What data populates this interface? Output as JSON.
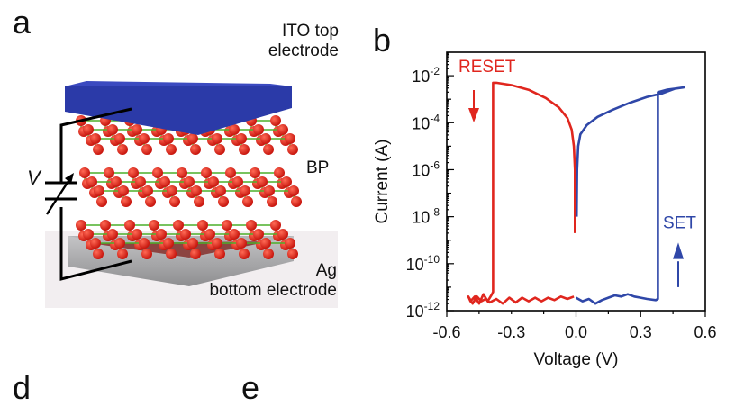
{
  "panels": {
    "a": {
      "letter": "a",
      "labels": {
        "top_electrode": [
          "ITO top",
          "electrode"
        ],
        "middle": "BP",
        "bottom_electrode": [
          "Ag",
          "bottom electrode"
        ],
        "voltage_source": "V"
      },
      "colors": {
        "top_electrode": "#2b3aa8",
        "atoms": "#e0261e",
        "bonds": "#4caf2a",
        "bottom_electrode": "#a9a9ab"
      }
    },
    "b": {
      "letter": "b"
    },
    "d": {
      "letter": "d"
    },
    "e": {
      "letter": "e"
    }
  },
  "chart_data": {
    "type": "line",
    "title": "",
    "xlabel": "Voltage (V)",
    "ylabel": "Current (A)",
    "xlim": [
      -0.6,
      0.6
    ],
    "ylim_log10": [
      -12,
      -1
    ],
    "yscale": "log",
    "xticks": [
      "-0.6",
      "-0.3",
      "0.0",
      "0.3",
      "0.6"
    ],
    "xtick_values": [
      -0.6,
      -0.3,
      0.0,
      0.3,
      0.6
    ],
    "yticks": [
      {
        "base": "10",
        "exp": "-2",
        "value": -2
      },
      {
        "base": "10",
        "exp": "-4",
        "value": -4
      },
      {
        "base": "10",
        "exp": "-6",
        "value": -6
      },
      {
        "base": "10",
        "exp": "-8",
        "value": -8
      },
      {
        "base": "10",
        "exp": "-10",
        "value": -10
      },
      {
        "base": "10",
        "exp": "-12",
        "value": -12
      }
    ],
    "annotations": [
      {
        "text": "RESET",
        "color": "#e0261e",
        "arrow": "down"
      },
      {
        "text": "SET",
        "color": "#2f47a8",
        "arrow": "up"
      }
    ],
    "series": [
      {
        "name": "RESET sweep",
        "color": "#e0261e",
        "points_log10": [
          [
            -0.005,
            -8.7
          ],
          [
            -0.005,
            -6.0
          ],
          [
            -0.01,
            -5.0
          ],
          [
            -0.02,
            -4.3
          ],
          [
            -0.04,
            -3.8
          ],
          [
            -0.08,
            -3.35
          ],
          [
            -0.14,
            -2.95
          ],
          [
            -0.22,
            -2.6
          ],
          [
            -0.3,
            -2.4
          ],
          [
            -0.37,
            -2.3
          ],
          [
            -0.385,
            -2.3
          ],
          [
            -0.385,
            -11.2
          ],
          [
            -0.39,
            -11.3
          ],
          [
            -0.41,
            -11.6
          ],
          [
            -0.43,
            -11.3
          ],
          [
            -0.45,
            -11.7
          ],
          [
            -0.47,
            -11.4
          ],
          [
            -0.49,
            -11.6
          ],
          [
            -0.5,
            -11.4
          ],
          [
            -0.48,
            -11.7
          ],
          [
            -0.46,
            -11.4
          ],
          [
            -0.44,
            -11.6
          ],
          [
            -0.42,
            -11.5
          ],
          [
            -0.4,
            -11.65
          ],
          [
            -0.37,
            -11.5
          ],
          [
            -0.34,
            -11.7
          ],
          [
            -0.31,
            -11.45
          ],
          [
            -0.28,
            -11.65
          ],
          [
            -0.25,
            -11.45
          ],
          [
            -0.22,
            -11.6
          ],
          [
            -0.19,
            -11.45
          ],
          [
            -0.16,
            -11.6
          ],
          [
            -0.13,
            -11.45
          ],
          [
            -0.1,
            -11.55
          ],
          [
            -0.07,
            -11.4
          ],
          [
            -0.04,
            -11.5
          ],
          [
            -0.01,
            -11.4
          ]
        ]
      },
      {
        "name": "SET sweep",
        "color": "#2f47a8",
        "points_log10": [
          [
            0.0,
            -11.45
          ],
          [
            0.03,
            -11.6
          ],
          [
            0.06,
            -11.5
          ],
          [
            0.09,
            -11.7
          ],
          [
            0.12,
            -11.55
          ],
          [
            0.15,
            -11.45
          ],
          [
            0.18,
            -11.35
          ],
          [
            0.21,
            -11.4
          ],
          [
            0.24,
            -11.3
          ],
          [
            0.27,
            -11.4
          ],
          [
            0.3,
            -11.45
          ],
          [
            0.33,
            -11.5
          ],
          [
            0.37,
            -11.55
          ],
          [
            0.38,
            -11.5
          ],
          [
            0.38,
            -2.7
          ],
          [
            0.42,
            -2.6
          ],
          [
            0.46,
            -2.55
          ],
          [
            0.5,
            -2.5
          ],
          [
            0.46,
            -2.55
          ],
          [
            0.4,
            -2.75
          ],
          [
            0.33,
            -2.9
          ],
          [
            0.25,
            -3.15
          ],
          [
            0.17,
            -3.45
          ],
          [
            0.1,
            -3.75
          ],
          [
            0.05,
            -4.1
          ],
          [
            0.02,
            -4.5
          ],
          [
            0.01,
            -5.0
          ],
          [
            0.005,
            -6.0
          ],
          [
            0.003,
            -8.0
          ]
        ]
      }
    ],
    "grid": false,
    "legend": "none"
  }
}
